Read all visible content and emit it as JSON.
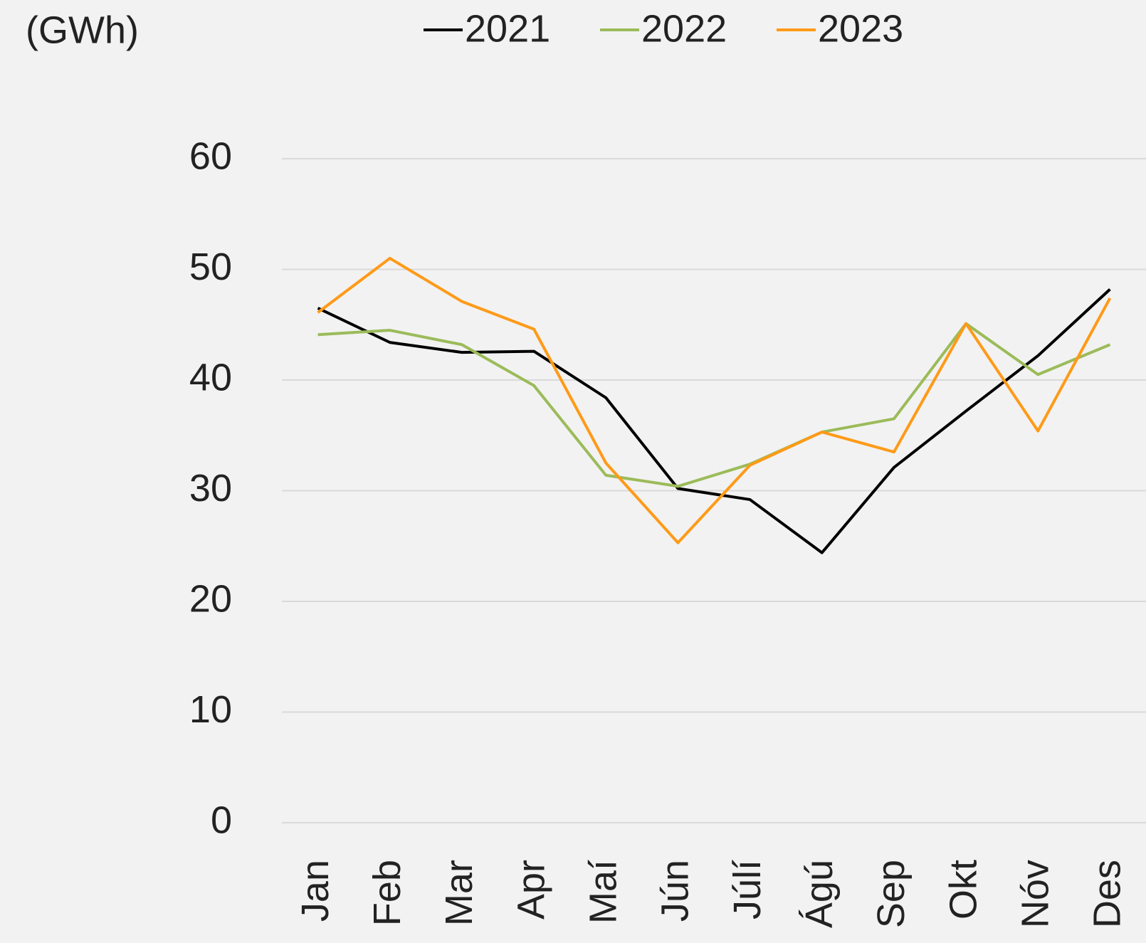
{
  "chart_data": {
    "type": "line",
    "y_label": "(GWh)",
    "categories": [
      "Jan",
      "Feb",
      "Mar",
      "Apr",
      "Maí",
      "Jún",
      "Júlí",
      "Ágú",
      "Sep",
      "Okt",
      "Nóv",
      "Des"
    ],
    "series": [
      {
        "name": "2021",
        "color": "#000000",
        "values": [
          46.5,
          43.4,
          42.5,
          42.6,
          38.4,
          30.2,
          29.2,
          24.4,
          32.1,
          37.2,
          42.2,
          48.2
        ]
      },
      {
        "name": "2022",
        "color": "#9bbb59",
        "values": [
          44.1,
          44.5,
          43.2,
          39.5,
          31.4,
          30.4,
          32.4,
          35.3,
          36.5,
          45.1,
          40.5,
          43.2
        ]
      },
      {
        "name": "2023",
        "color": "#ff9a17",
        "values": [
          46.1,
          51.0,
          47.1,
          44.6,
          32.5,
          25.3,
          32.3,
          35.3,
          33.5,
          45.1,
          35.4,
          47.4
        ]
      }
    ],
    "ylim": [
      0,
      60
    ],
    "yticks": [
      0,
      10,
      20,
      30,
      40,
      50,
      60
    ],
    "grid": true,
    "legend": "top"
  }
}
